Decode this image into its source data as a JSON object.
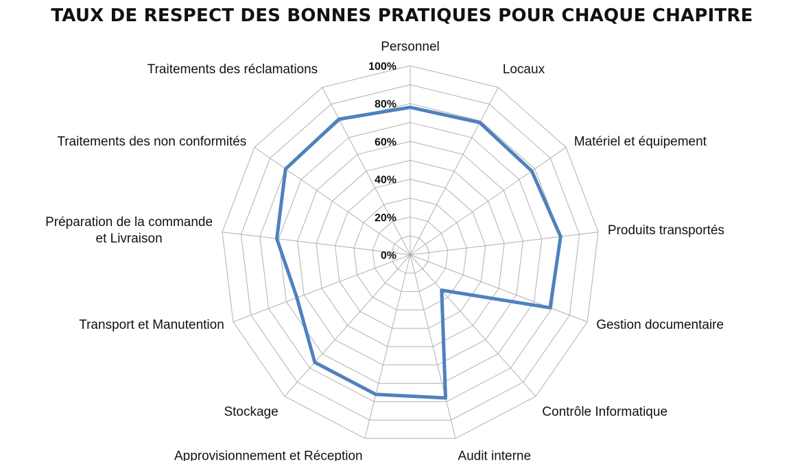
{
  "chart_data": {
    "type": "radar",
    "title": "TAUX DE RESPECT DES BONNES PRATIQUES POUR CHAQUE CHAPITRE",
    "categories": [
      "Personnel",
      "Locaux",
      "Matériel et équipement",
      "Produits transportés",
      "Gestion documentaire",
      "Contrôle Informatique",
      "Audit interne",
      "Approvisionnement et Réception",
      "Stockage",
      "Transport et Manutention",
      "Préparation de la commande et Livraison",
      "Traitements des non conformités",
      "Traitements des réclamations"
    ],
    "category_label_lines": [
      [
        "Personnel"
      ],
      [
        "Locaux"
      ],
      [
        "Matériel et équipement"
      ],
      [
        "Produits transportés"
      ],
      [
        "Gestion documentaire"
      ],
      [
        "Contrôle Informatique"
      ],
      [
        "Audit interne"
      ],
      [
        "Approvisionnement et Réception"
      ],
      [
        "Stockage"
      ],
      [
        "Transport et Manutention"
      ],
      [
        "Préparation de la commande",
        "et Livraison"
      ],
      [
        "Traitements des non conformités"
      ],
      [
        "Traitements des réclamations"
      ]
    ],
    "series": [
      {
        "values": [
          78,
          79,
          78,
          80,
          79,
          25,
          78,
          76,
          76,
          64,
          71,
          80,
          81
        ]
      }
    ],
    "rlim": [
      0,
      100
    ],
    "ticks": [
      "0%",
      "20%",
      "40%",
      "60%",
      "80%",
      "100%"
    ],
    "tick_values": [
      0,
      20,
      40,
      60,
      80,
      100
    ],
    "grid": true,
    "series_color": "#4f81bd",
    "grid_color": "#b0b0b0"
  }
}
